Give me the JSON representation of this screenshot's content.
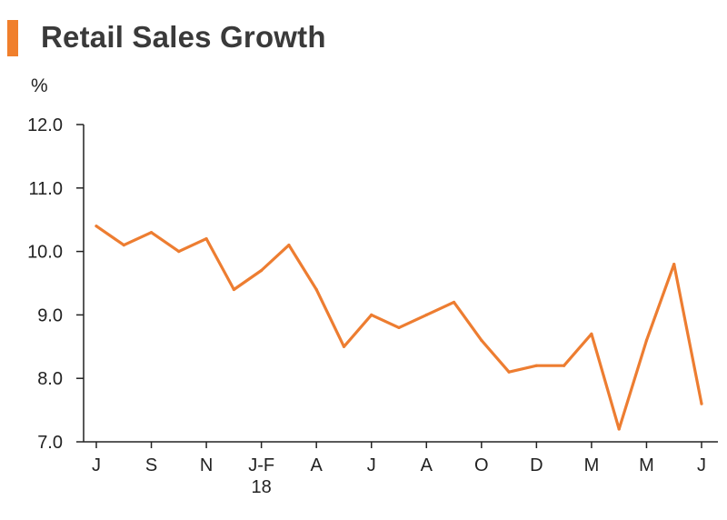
{
  "title": "Retail Sales Growth",
  "colors": {
    "accent": "#f07f2c",
    "line": "#ed7d31",
    "axis": "#222222"
  },
  "chart_data": {
    "type": "line",
    "title": "Retail Sales Growth",
    "ylabel": "%",
    "xlabel": "",
    "ylim": [
      7.0,
      12.0
    ],
    "yticks": [
      "12.0",
      "11.0",
      "10.0",
      "9.0",
      "8.0",
      "7.0"
    ],
    "x_tick_labels": [
      "J",
      "S",
      "N",
      "J-F",
      "A",
      "J",
      "A",
      "O",
      "D",
      "M",
      "M",
      "J"
    ],
    "x_tick_sublabels": [
      "",
      "",
      "",
      "18",
      "",
      "",
      "",
      "",
      "",
      "",
      "",
      ""
    ],
    "series": [
      {
        "name": "Retail Sales Growth",
        "values": [
          10.4,
          10.1,
          10.3,
          10.0,
          10.2,
          9.4,
          9.7,
          10.1,
          9.4,
          8.5,
          9.0,
          8.8,
          9.0,
          9.2,
          8.6,
          8.1,
          8.2,
          8.2,
          8.7,
          7.2,
          8.6,
          9.8,
          7.6
        ]
      }
    ]
  }
}
